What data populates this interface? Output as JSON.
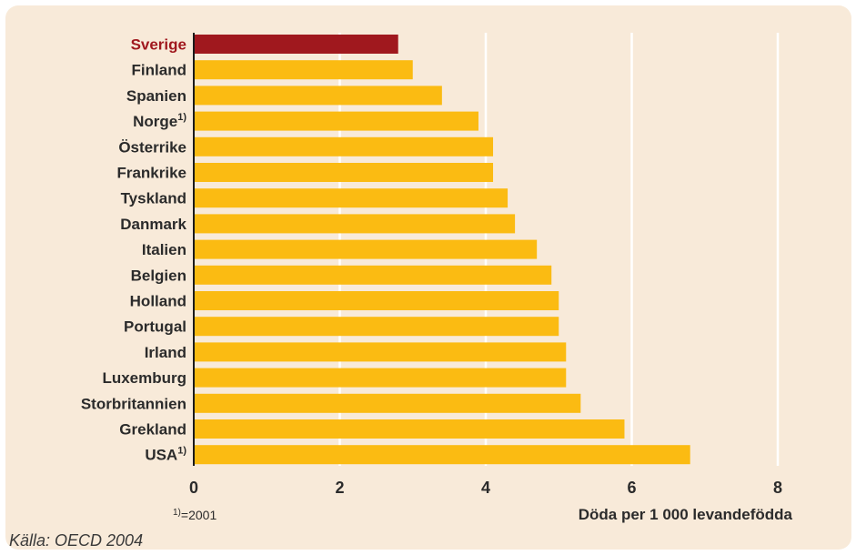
{
  "chart_data": {
    "type": "bar",
    "orientation": "horizontal",
    "categories": [
      "Sverige",
      "Finland",
      "Spanien",
      "Norge",
      "Österrike",
      "Frankrike",
      "Tyskland",
      "Danmark",
      "Italien",
      "Belgien",
      "Holland",
      "Portugal",
      "Irland",
      "Luxemburg",
      "Storbritannien",
      "Grekland",
      "USA"
    ],
    "footnote_marks": [
      "",
      "",
      "",
      "1)",
      "",
      "",
      "",
      "",
      "",
      "",
      "",
      "",
      "",
      "",
      "",
      "",
      "1)"
    ],
    "values": [
      2.8,
      3.0,
      3.4,
      3.9,
      4.1,
      4.1,
      4.3,
      4.4,
      4.7,
      4.9,
      5.0,
      5.0,
      5.1,
      5.1,
      5.3,
      5.9,
      6.8
    ],
    "highlight_index": 0,
    "xlabel": "Döda per 1 000 levandefödda",
    "xlim": [
      0,
      8
    ],
    "xticks": [
      "0",
      "2",
      "4",
      "6",
      "8"
    ],
    "grid": true,
    "colors": {
      "bar": "#fbbb12",
      "highlight": "#a0181e",
      "background": "#f8ead9",
      "grid": "#ffffff"
    }
  },
  "footnote": "1)=2001",
  "source": "Källa: OECD 2004"
}
